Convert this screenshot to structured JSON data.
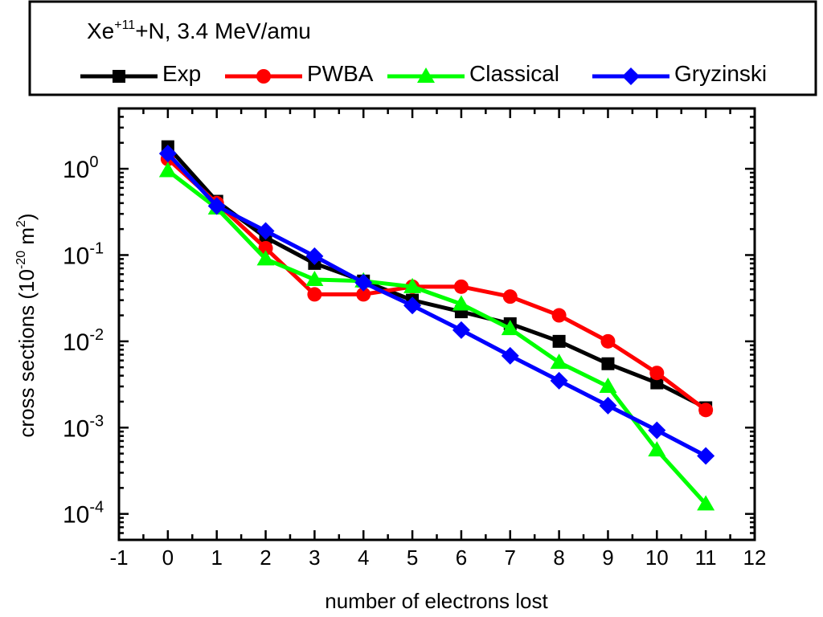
{
  "chart_data": {
    "type": "line",
    "title": "",
    "legend_title": {
      "base": "Xe",
      "sup": "+11",
      "rest": "+N, 3.4 MeV/amu"
    },
    "xlabel": "number of electrons lost",
    "ylabel": {
      "pre": "cross sections (10",
      "sup1": "-20",
      "mid": " m",
      "sup2": "2",
      "post": ")"
    },
    "x_scale": "linear",
    "y_scale": "log",
    "xlim": [
      -1,
      12
    ],
    "ylim": [
      5e-05,
      5
    ],
    "x_ticks": [
      -1,
      0,
      1,
      2,
      3,
      4,
      5,
      6,
      7,
      8,
      9,
      10,
      11,
      12
    ],
    "x_tick_labels": [
      "-1",
      "0",
      "1",
      "2",
      "3",
      "4",
      "5",
      "6",
      "7",
      "8",
      "9",
      "10",
      "11",
      "12"
    ],
    "y_ticks": [
      {
        "value": 1,
        "base": "10",
        "exp": "0"
      },
      {
        "value": 0.1,
        "base": "10",
        "exp": "-1"
      },
      {
        "value": 0.01,
        "base": "10",
        "exp": "-2"
      },
      {
        "value": 0.001,
        "base": "10",
        "exp": "-3"
      },
      {
        "value": 0.0001,
        "base": "10",
        "exp": "-4"
      }
    ],
    "grid": false,
    "legend_position": "top",
    "x": [
      0,
      1,
      2,
      3,
      4,
      5,
      6,
      7,
      8,
      9,
      10,
      11
    ],
    "series": [
      {
        "name": "Exp",
        "color": "#000000",
        "marker": "square",
        "values": [
          1.8,
          0.42,
          0.16,
          0.08,
          0.05,
          0.03,
          0.022,
          0.016,
          0.01,
          0.0055,
          0.0033,
          0.0017
        ]
      },
      {
        "name": "PWBA",
        "color": "#ff0000",
        "marker": "circle",
        "values": [
          1.3,
          0.4,
          0.12,
          0.035,
          0.035,
          0.043,
          0.043,
          0.033,
          0.02,
          0.01,
          0.0043,
          0.0016
        ]
      },
      {
        "name": "Classical",
        "color": "#00ff00",
        "marker": "triangle",
        "values": [
          0.95,
          0.35,
          0.09,
          0.052,
          0.05,
          0.043,
          0.027,
          0.014,
          0.0057,
          0.003,
          0.00055,
          0.00013
        ]
      },
      {
        "name": "Gryzinski",
        "color": "#0000ff",
        "marker": "diamond",
        "values": [
          1.5,
          0.37,
          0.19,
          0.097,
          0.048,
          0.026,
          0.0135,
          0.0068,
          0.0035,
          0.0018,
          0.00093,
          0.00047
        ]
      }
    ]
  }
}
